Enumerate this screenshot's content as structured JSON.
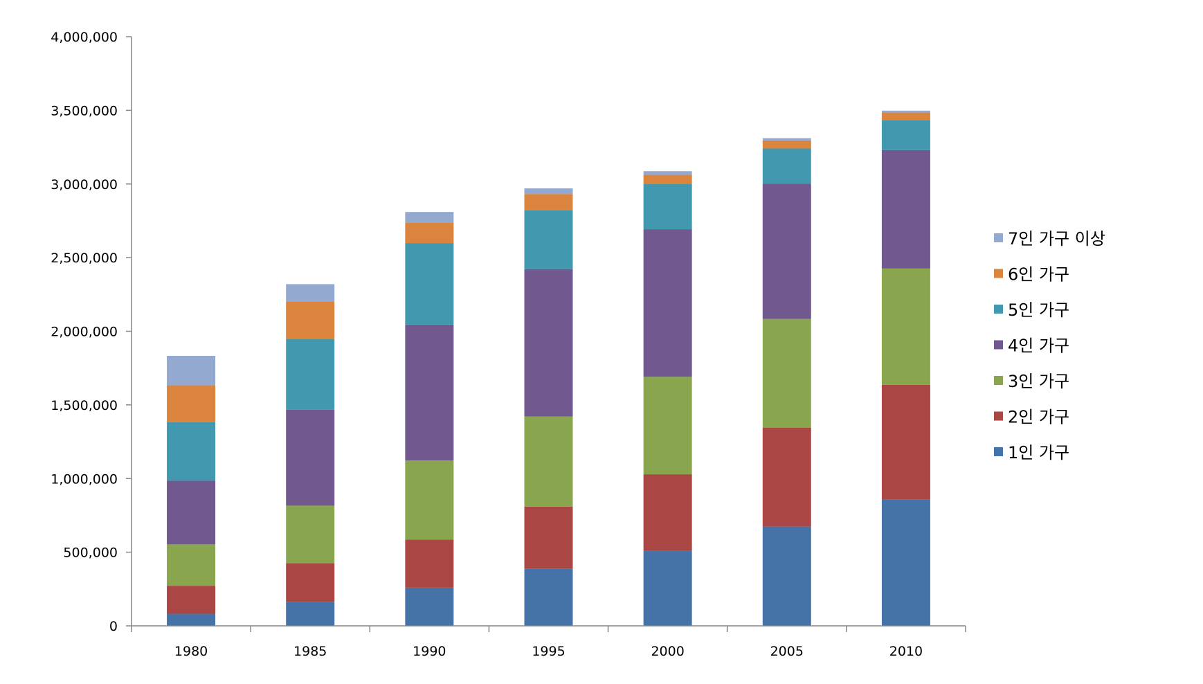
{
  "chart_data": {
    "type": "bar",
    "stacked": true,
    "title": "",
    "xlabel": "",
    "ylabel": "",
    "ylim": [
      0,
      4000000
    ],
    "y_ticks": [
      0,
      500000,
      1000000,
      1500000,
      2000000,
      2500000,
      3000000,
      3500000,
      4000000
    ],
    "y_tick_labels": [
      "0",
      "500,000",
      "1,000,000",
      "1,500,000",
      "2,000,000",
      "2,500,000",
      "3,000,000",
      "3,500,000",
      "4,000,000"
    ],
    "categories": [
      "1980",
      "1985",
      "1990",
      "1995",
      "2000",
      "2005",
      "2010"
    ],
    "grid": false,
    "legend_position": "right",
    "series": [
      {
        "name": "1인 가구",
        "color": "#4572A7",
        "values": [
          82000,
          161000,
          259000,
          389000,
          512000,
          674000,
          857000
        ]
      },
      {
        "name": "2인 가구",
        "color": "#AA4643",
        "values": [
          190000,
          264000,
          326000,
          420000,
          517000,
          672000,
          779000
        ]
      },
      {
        "name": "3인 가구",
        "color": "#89A54E",
        "values": [
          281000,
          391000,
          538000,
          613000,
          662000,
          738000,
          790000
        ]
      },
      {
        "name": "4인 가구",
        "color": "#71588F",
        "values": [
          432000,
          652000,
          922000,
          1000000,
          1002000,
          917000,
          804000
        ]
      },
      {
        "name": "5인 가구",
        "color": "#4198AF",
        "values": [
          398000,
          478000,
          554000,
          400000,
          309000,
          240000,
          205000
        ]
      },
      {
        "name": "6인 가구",
        "color": "#DB843D",
        "values": [
          250000,
          254000,
          140000,
          110000,
          60000,
          55000,
          50000
        ]
      },
      {
        "name": "7인 가구 이상",
        "color": "#93A9CF",
        "values": [
          200000,
          120000,
          71000,
          38000,
          25000,
          15000,
          13000
        ]
      }
    ]
  },
  "colors": {
    "axis": "#868686",
    "text": "#000000",
    "background": "#ffffff"
  }
}
